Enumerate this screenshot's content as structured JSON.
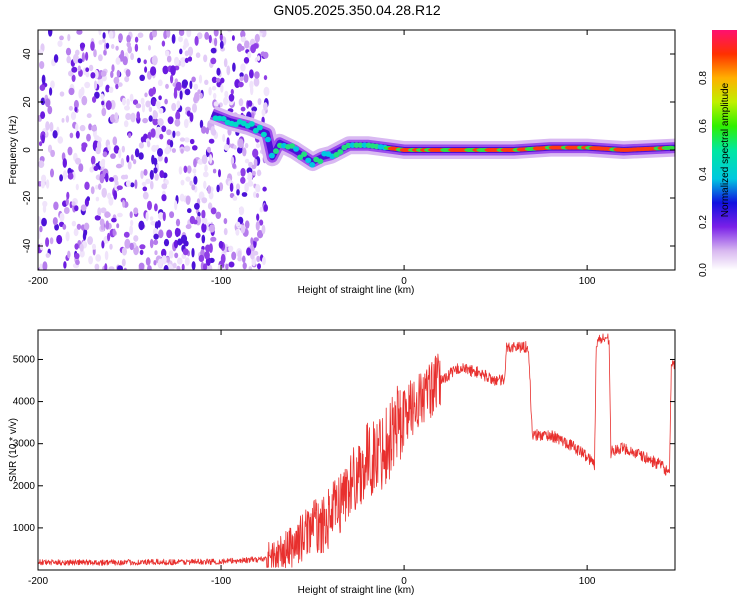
{
  "title": "GN05.2025.350.04.28.R12",
  "chart_data": [
    {
      "type": "heatmap",
      "name": "spectrogram",
      "xlabel": "Height of straight line (km)",
      "ylabel": "Frequency (Hz)",
      "xlim": [
        -200,
        148
      ],
      "ylim": [
        -50,
        50
      ],
      "xticks": [
        -200,
        -100,
        0,
        100
      ],
      "yticks": [
        -40,
        -20,
        0,
        20,
        40
      ],
      "colorbar": {
        "label": "Normalized spectral amplitude",
        "range": [
          0,
          1
        ],
        "ticks": [
          "0.0",
          "0.2",
          "0.4",
          "0.6",
          "0.8"
        ],
        "tick_values": [
          0,
          0.2,
          0.4,
          0.6,
          0.8
        ]
      },
      "ridge": {
        "x": [
          -105,
          -95,
          -85,
          -75,
          -72,
          -68,
          -60,
          -50,
          -45,
          -40,
          -35,
          -30,
          -20,
          -10,
          0,
          20,
          40,
          60,
          80,
          100,
          120,
          148
        ],
        "y": [
          15,
          12,
          10,
          7,
          -3,
          3,
          0,
          -5,
          -3,
          -2,
          0,
          2,
          2,
          1,
          0,
          0,
          0,
          0,
          1,
          1,
          0,
          1
        ]
      },
      "noise_region_x": [
        -200,
        -75
      ]
    },
    {
      "type": "line",
      "name": "snr",
      "xlabel": "Height of straight line (km)",
      "ylabel": "SNR (10 * v/v)",
      "xlim": [
        -200,
        148
      ],
      "ylim": [
        0,
        5700
      ],
      "xticks": [
        -200,
        -100,
        0,
        100
      ],
      "yticks": [
        1000,
        2000,
        3000,
        4000,
        5000
      ],
      "series": [
        {
          "name": "SNR",
          "color": "#e8302e",
          "x": [
            -200,
            -150,
            -100,
            -80,
            -70,
            -60,
            -55,
            -50,
            -45,
            -40,
            -35,
            -30,
            -25,
            -20,
            -15,
            -10,
            -5,
            0,
            5,
            10,
            15,
            20,
            30,
            40,
            50,
            55,
            56,
            60,
            65,
            68,
            70,
            80,
            90,
            100,
            104,
            105,
            108,
            112,
            113,
            120,
            130,
            140,
            145,
            146,
            148
          ],
          "y": [
            180,
            180,
            200,
            250,
            300,
            600,
            800,
            1100,
            1000,
            1300,
            1600,
            2000,
            2300,
            2600,
            2700,
            3000,
            3400,
            3700,
            3900,
            4100,
            4300,
            4500,
            4800,
            4700,
            4500,
            4500,
            5300,
            5300,
            5300,
            5300,
            3200,
            3200,
            3000,
            2700,
            2500,
            5400,
            5500,
            5500,
            2800,
            2900,
            2700,
            2500,
            2300,
            4800,
            4900
          ]
        }
      ]
    }
  ]
}
